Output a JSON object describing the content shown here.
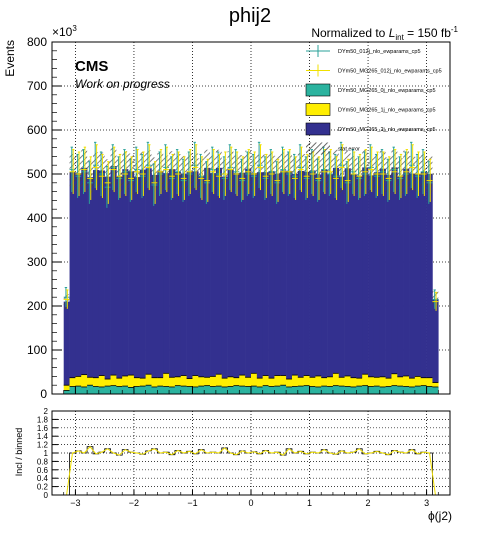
{
  "chart_data": {
    "type": "bar",
    "title": "phij2",
    "lumi_text_prefix": "Normalized to ",
    "lumi_symbol": "L",
    "lumi_subscript": "int",
    "lumi_text_value": " = 150 fb",
    "lumi_superscript": "-1",
    "cms_label": "CMS",
    "status_label": "Work on progress",
    "ylabel": "Events",
    "y_multiplier": "×10",
    "y_multiplier_exp": "3",
    "xlabel": "ϕ(j2)",
    "ratio_ylabel": "Incl / binned",
    "xlim": [
      -3.4,
      3.4
    ],
    "ylim": [
      0,
      800
    ],
    "ratio_ylim": [
      0,
      2
    ],
    "x_ticks": [
      "−3",
      "−2",
      "−1",
      "0",
      "1",
      "2",
      "3"
    ],
    "y_ticks": [
      "0",
      "100",
      "200",
      "300",
      "400",
      "500",
      "600",
      "700",
      "800"
    ],
    "ratio_y_ticks": [
      "0",
      "0.2",
      "0.4",
      "0.6",
      "0.8",
      "1",
      "1.2",
      "1.4",
      "1.6",
      "1.8",
      "2"
    ],
    "grid": true,
    "legend_position": "top-right",
    "legend": [
      {
        "label": "DYm50_012j_nlo_ewparams_cp5",
        "style": "marker",
        "color": "#2aa198"
      },
      {
        "label": "DYm50_MG265_012j_nlo_ewparams_cp5",
        "style": "marker",
        "color": "#f0e000"
      },
      {
        "label": "DYm50_MG265_0j_nlo_ewparams_cp5",
        "style": "fill",
        "color": "#2bb39f"
      },
      {
        "label": "DYm50_MG265_1j_nlo_ewparams_cp5",
        "style": "fill",
        "color": "#ffee00"
      },
      {
        "label": "DYm50_MG265_2j_nlo_ewparams_cp5",
        "style": "fill",
        "color": "#33308f"
      },
      {
        "label": "stat error",
        "style": "hatch",
        "color": "#555555"
      }
    ],
    "colors": {
      "zero_jet": "#2bb39f",
      "one_jet": "#ffee00",
      "two_jet": "#33308f",
      "incl_marker": "#2aa198",
      "mg_marker": "#f0e000"
    },
    "bin_edges_range": [
      -3.2,
      3.2
    ],
    "series": [
      {
        "name": "DYm50_MG265_0j_nlo_ewparams_cp5",
        "values": [
          8,
          17,
          18,
          16,
          20,
          17,
          16,
          18,
          19,
          17,
          18,
          15,
          17,
          18,
          20,
          16,
          18,
          17,
          16,
          19,
          18,
          17,
          16,
          18,
          19,
          17,
          18,
          16,
          17,
          19,
          18,
          17,
          18,
          16,
          19,
          17,
          18,
          20,
          16,
          17,
          18,
          19,
          17,
          16,
          18,
          17,
          19,
          18,
          17,
          16,
          18,
          19,
          17,
          18,
          16,
          17,
          19,
          18,
          17,
          16,
          18,
          19,
          17,
          16
        ]
      },
      {
        "name": "DYm50_MG265_1j_nlo_ewparams_cp5",
        "values": [
          12,
          20,
          22,
          28,
          18,
          20,
          26,
          16,
          24,
          19,
          23,
          28,
          20,
          18,
          25,
          21,
          19,
          30,
          22,
          20,
          24,
          18,
          26,
          21,
          19,
          23,
          27,
          20,
          22,
          18,
          25,
          21,
          29,
          20,
          23,
          19,
          24,
          22,
          18,
          26,
          20,
          23,
          21,
          25,
          19,
          22,
          28,
          20,
          24,
          21,
          18,
          26,
          22,
          20,
          23,
          19,
          27,
          21,
          24,
          20,
          22,
          18,
          20,
          10
        ]
      },
      {
        "name": "DYm50_MG265_2j_nlo_ewparams_cp5",
        "values": [
          190,
          468,
          462,
          470,
          455,
          472,
          466,
          460,
          475,
          458,
          470,
          463,
          456,
          474,
          468,
          461,
          470,
          455,
          473,
          466,
          459,
          471,
          464,
          457,
          476,
          462,
          469,
          458,
          472,
          465,
          460,
          474,
          455,
          468,
          462,
          471,
          459,
          466,
          473,
          457,
          469,
          463,
          470,
          458,
          474,
          461,
          467,
          456,
          472,
          464,
          460,
          470,
          458,
          466,
          473,
          462,
          469,
          457,
          471,
          465,
          459,
          468,
          463,
          190
        ]
      },
      {
        "name": "DYm50_012j_nlo_ewparams_cp5",
        "values": [
          220,
          510,
          495,
          505,
          480,
          520,
          500,
          470,
          515,
          490,
          505,
          485,
          510,
          495,
          520,
          475,
          500,
          515,
          490,
          505,
          485,
          500,
          520,
          495,
          480,
          510,
          500,
          490,
          515,
          505,
          485,
          500,
          495,
          520,
          490,
          505,
          480,
          510,
          500,
          495,
          515,
          490,
          505,
          485,
          510,
          500,
          495,
          520,
          480,
          505,
          490,
          500,
          515,
          495,
          505,
          485,
          510,
          490,
          500,
          520,
          495,
          505,
          480,
          215
        ]
      },
      {
        "name": "DYm50_MG265_012j_nlo_ewparams_cp5",
        "values": [
          215,
          505,
          500,
          510,
          490,
          515,
          495,
          480,
          510,
          495,
          500,
          490,
          505,
          500,
          515,
          480,
          505,
          510,
          495,
          500,
          490,
          505,
          515,
          490,
          485,
          505,
          495,
          500,
          510,
          500,
          490,
          505,
          500,
          515,
          495,
          500,
          485,
          505,
          505,
          490,
          510,
          495,
          500,
          490,
          505,
          505,
          490,
          515,
          485,
          500,
          495,
          505,
          510,
          500,
          500,
          490,
          505,
          495,
          505,
          515,
          500,
          500,
          485,
          210
        ]
      }
    ],
    "ratio_values": [
      0.0,
      1.0,
      1.05,
      1.0,
      1.15,
      0.98,
      1.02,
      1.1,
      1.0,
      0.95,
      1.08,
      1.02,
      1.0,
      0.97,
      1.05,
      1.1,
      1.0,
      1.02,
      0.96,
      1.06,
      1.0,
      1.04,
      0.98,
      1.08,
      1.0,
      1.02,
      1.0,
      1.12,
      1.0,
      0.96,
      1.05,
      1.0,
      1.03,
      0.98,
      1.06,
      1.0,
      1.02,
      0.95,
      1.1,
      1.0,
      1.04,
      0.98,
      1.02,
      1.0,
      1.08,
      1.0,
      0.97,
      1.05,
      1.0,
      1.02,
      1.1,
      0.98,
      1.0,
      1.04,
      1.0,
      0.96,
      1.06,
      1.02,
      1.0,
      1.08,
      0.98,
      1.02,
      1.0,
      0.0
    ]
  }
}
